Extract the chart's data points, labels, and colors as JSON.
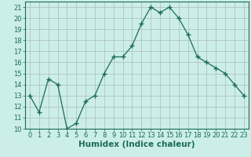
{
  "x": [
    0,
    1,
    2,
    3,
    4,
    5,
    6,
    7,
    8,
    9,
    10,
    11,
    12,
    13,
    14,
    15,
    16,
    17,
    18,
    19,
    20,
    21,
    22,
    23
  ],
  "y": [
    13,
    11.5,
    14.5,
    14,
    10,
    10.5,
    12.5,
    13,
    15,
    16.5,
    16.5,
    17.5,
    19.5,
    21,
    20.5,
    21,
    20,
    18.5,
    16.5,
    16,
    15.5,
    15,
    14,
    13
  ],
  "line_color": "#1a6b5a",
  "marker": "+",
  "marker_size": 4,
  "marker_linewidth": 1.0,
  "bg_color": "#cceee8",
  "grid_color": "#aabbbb",
  "xlabel": "Humidex (Indice chaleur)",
  "xlim": [
    -0.5,
    23.5
  ],
  "ylim": [
    10,
    21.5
  ],
  "yticks": [
    10,
    11,
    12,
    13,
    14,
    15,
    16,
    17,
    18,
    19,
    20,
    21
  ],
  "xticks": [
    0,
    1,
    2,
    3,
    4,
    5,
    6,
    7,
    8,
    9,
    10,
    11,
    12,
    13,
    14,
    15,
    16,
    17,
    18,
    19,
    20,
    21,
    22,
    23
  ],
  "tick_color": "#1a6b5a",
  "axis_color": "#1a6b5a",
  "xlabel_fontsize": 7.5,
  "tick_fontsize": 6.0,
  "linewidth": 0.9
}
